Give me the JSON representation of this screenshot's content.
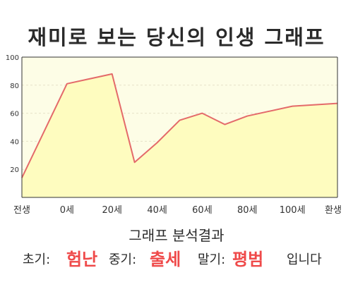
{
  "title": "재미로 보는 당신의 인생 그래프",
  "analysis": {
    "heading": "그래프 분석결과",
    "early_label": "초기:",
    "early_value": "험난",
    "middle_label": "중기:",
    "middle_value": "출세",
    "late_label": "말기:",
    "late_value": "평범",
    "suffix": "입니다"
  },
  "colors": {
    "line": "#e46a6a",
    "fill": "#fefcbf",
    "plot_bg": "#fdfde6",
    "axis": "#333333",
    "highlight_text": "#ef4a4a"
  },
  "chart_data": {
    "type": "area",
    "title": "재미로 보는 당신의 인생 그래프",
    "xlabel": "",
    "ylabel": "",
    "x_tick_labels": [
      "전생",
      "0세",
      "20세",
      "40세",
      "60세",
      "80세",
      "100세",
      "환생"
    ],
    "x": [
      -20,
      0,
      20,
      30,
      40,
      50,
      60,
      70,
      80,
      100,
      120
    ],
    "values": [
      14,
      81,
      88,
      25,
      39,
      55,
      60,
      52,
      58,
      65,
      67
    ],
    "y_ticks": [
      20,
      40,
      60,
      80,
      100
    ],
    "ylim": [
      0,
      100
    ],
    "xlim": [
      -20,
      120
    ],
    "grid": true
  }
}
